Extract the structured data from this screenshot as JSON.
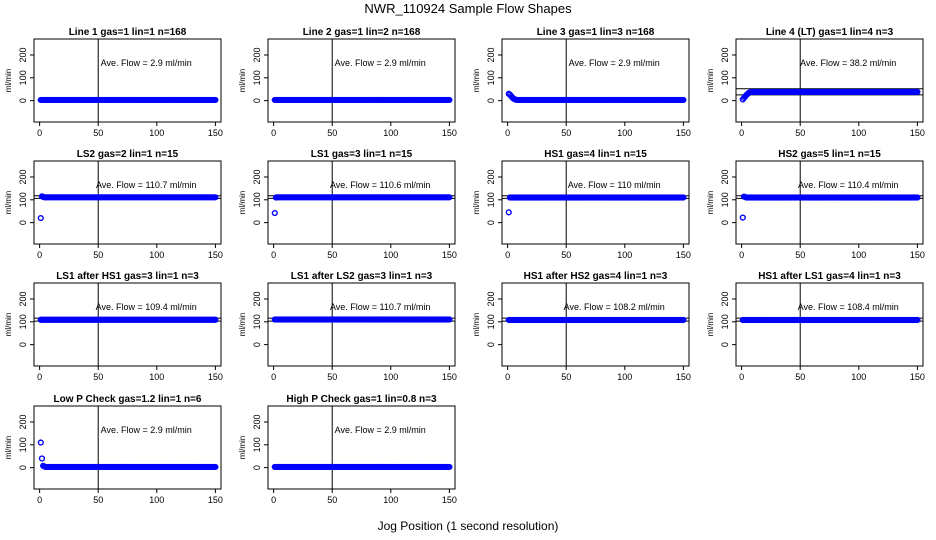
{
  "figure": {
    "title": "NWR_110924  Sample Flow Shapes",
    "xlabel": "Jog Position (1 second resolution)"
  },
  "colors": {
    "points": "#0000ff",
    "axes": "#000000",
    "background": "#ffffff"
  },
  "chart_data": [
    {
      "type": "scatter",
      "title": "Line 1 gas=1 lin=1 n=168",
      "ylabel": "ml/min",
      "annotation": "Ave. Flow =  2.9  ml/min",
      "xlim": [
        0,
        150
      ],
      "ylim": [
        -30,
        210
      ],
      "xticks": [
        0,
        50,
        100,
        150
      ],
      "yticks": [
        0,
        100,
        200
      ],
      "vline": 50,
      "hlines": [],
      "shape": {
        "baseline": 3,
        "start": []
      }
    },
    {
      "type": "scatter",
      "title": "Line 2 gas=1 lin=2 n=168",
      "ylabel": "ml/min",
      "annotation": "Ave. Flow =  2.9  ml/min",
      "xlim": [
        0,
        150
      ],
      "ylim": [
        -30,
        210
      ],
      "xticks": [
        0,
        50,
        100,
        150
      ],
      "yticks": [
        0,
        100,
        200
      ],
      "vline": 50,
      "hlines": [],
      "shape": {
        "baseline": 3,
        "start": []
      }
    },
    {
      "type": "scatter",
      "title": "Line 3 gas=1 lin=3 n=168",
      "ylabel": "ml/min",
      "annotation": "Ave. Flow =  2.9  ml/min",
      "xlim": [
        0,
        150
      ],
      "ylim": [
        -30,
        210
      ],
      "xticks": [
        0,
        50,
        100,
        150
      ],
      "yticks": [
        0,
        100,
        200
      ],
      "vline": 50,
      "hlines": [],
      "shape": {
        "baseline": 3,
        "start": [
          30,
          26,
          20,
          14,
          9,
          6,
          4
        ]
      }
    },
    {
      "type": "scatter",
      "title": "Line 4 (LT) gas=1 lin=4 n=3",
      "ylabel": "ml/min",
      "annotation": "Ave. Flow =  38.2  ml/min",
      "xlim": [
        0,
        150
      ],
      "ylim": [
        -30,
        210
      ],
      "xticks": [
        0,
        50,
        100,
        150
      ],
      "yticks": [
        0,
        100,
        200
      ],
      "vline": 50,
      "hlines": [
        52,
        25
      ],
      "shape": {
        "baseline": 38,
        "start": [
          5,
          12,
          18,
          24,
          29,
          33,
          36
        ]
      }
    },
    {
      "type": "scatter",
      "title": "LS2 gas=2 lin=1 n=15",
      "ylabel": "ml/min",
      "annotation": "Ave. Flow =  110.7  ml/min",
      "xlim": [
        0,
        150
      ],
      "ylim": [
        -30,
        210
      ],
      "xticks": [
        0,
        50,
        100,
        150
      ],
      "yticks": [
        0,
        100,
        200
      ],
      "vline": 50,
      "hlines": [
        118,
        106
      ],
      "shape": {
        "baseline": 111,
        "start": [
          20,
          115,
          113
        ]
      }
    },
    {
      "type": "scatter",
      "title": "LS1 gas=3 lin=1 n=15",
      "ylabel": "ml/min",
      "annotation": "Ave. Flow =  110.6  ml/min",
      "xlim": [
        0,
        150
      ],
      "ylim": [
        -30,
        210
      ],
      "xticks": [
        0,
        50,
        100,
        150
      ],
      "yticks": [
        0,
        100,
        200
      ],
      "vline": 50,
      "hlines": [
        118,
        106
      ],
      "shape": {
        "baseline": 111,
        "start": [
          42,
          110
        ]
      }
    },
    {
      "type": "scatter",
      "title": "HS1 gas=4 lin=1 n=15",
      "ylabel": "ml/min",
      "annotation": "Ave. Flow =  110  ml/min",
      "xlim": [
        0,
        150
      ],
      "ylim": [
        -30,
        210
      ],
      "xticks": [
        0,
        50,
        100,
        150
      ],
      "yticks": [
        0,
        100,
        200
      ],
      "vline": 50,
      "hlines": [
        118,
        106
      ],
      "shape": {
        "baseline": 110,
        "start": [
          45,
          110
        ]
      }
    },
    {
      "type": "scatter",
      "title": "HS2 gas=5 lin=1 n=15",
      "ylabel": "ml/min",
      "annotation": "Ave. Flow =  110.4  ml/min",
      "xlim": [
        0,
        150
      ],
      "ylim": [
        -30,
        210
      ],
      "xticks": [
        0,
        50,
        100,
        150
      ],
      "yticks": [
        0,
        100,
        200
      ],
      "vline": 50,
      "hlines": [
        118,
        106
      ],
      "shape": {
        "baseline": 110,
        "start": [
          22,
          114,
          112
        ]
      }
    },
    {
      "type": "scatter",
      "title": "LS1 after HS1 gas=3 lin=1 n=3",
      "ylabel": "ml/min",
      "annotation": "Ave. Flow =  109.4  ml/min",
      "xlim": [
        0,
        150
      ],
      "ylim": [
        -30,
        210
      ],
      "xticks": [
        0,
        50,
        100,
        150
      ],
      "yticks": [
        0,
        100,
        200
      ],
      "vline": 50,
      "hlines": [
        116,
        103
      ],
      "shape": {
        "baseline": 109,
        "start": []
      }
    },
    {
      "type": "scatter",
      "title": "LS1 after LS2 gas=3 lin=1 n=3",
      "ylabel": "ml/min",
      "annotation": "Ave. Flow =  110.7  ml/min",
      "xlim": [
        0,
        150
      ],
      "ylim": [
        -30,
        210
      ],
      "xticks": [
        0,
        50,
        100,
        150
      ],
      "yticks": [
        0,
        100,
        200
      ],
      "vline": 50,
      "hlines": [
        116,
        103
      ],
      "shape": {
        "baseline": 110,
        "start": []
      }
    },
    {
      "type": "scatter",
      "title": "HS1 after HS2 gas=4 lin=1 n=3",
      "ylabel": "ml/min",
      "annotation": "Ave. Flow =  108.2  ml/min",
      "xlim": [
        0,
        150
      ],
      "ylim": [
        -30,
        210
      ],
      "xticks": [
        0,
        50,
        100,
        150
      ],
      "yticks": [
        0,
        100,
        200
      ],
      "vline": 50,
      "hlines": [
        116,
        103
      ],
      "shape": {
        "baseline": 108,
        "start": []
      }
    },
    {
      "type": "scatter",
      "title": "HS1 after LS1 gas=4 lin=1 n=3",
      "ylabel": "ml/min",
      "annotation": "Ave. Flow =  108.4  ml/min",
      "xlim": [
        0,
        150
      ],
      "ylim": [
        -30,
        210
      ],
      "xticks": [
        0,
        50,
        100,
        150
      ],
      "yticks": [
        0,
        100,
        200
      ],
      "vline": 50,
      "hlines": [
        116,
        103
      ],
      "shape": {
        "baseline": 108,
        "start": []
      }
    },
    {
      "type": "scatter",
      "title": "Low P Check gas=1.2 lin=1 n=6",
      "ylabel": "ml/min",
      "annotation": "Ave. Flow =  2.9  ml/min",
      "xlim": [
        0,
        150
      ],
      "ylim": [
        -30,
        210
      ],
      "xticks": [
        0,
        50,
        100,
        150
      ],
      "yticks": [
        0,
        100,
        200
      ],
      "vline": 50,
      "hlines": [],
      "shape": {
        "baseline": 3,
        "start": [
          110,
          40,
          8,
          5
        ]
      }
    },
    {
      "type": "scatter",
      "title": "High P Check gas=1 lin=0.8 n=3",
      "ylabel": "ml/min",
      "annotation": "Ave. Flow =  2.9  ml/min",
      "xlim": [
        0,
        150
      ],
      "ylim": [
        -30,
        210
      ],
      "xticks": [
        0,
        50,
        100,
        150
      ],
      "yticks": [
        0,
        100,
        200
      ],
      "vline": 50,
      "hlines": [],
      "shape": {
        "baseline": 3,
        "start": []
      }
    }
  ]
}
